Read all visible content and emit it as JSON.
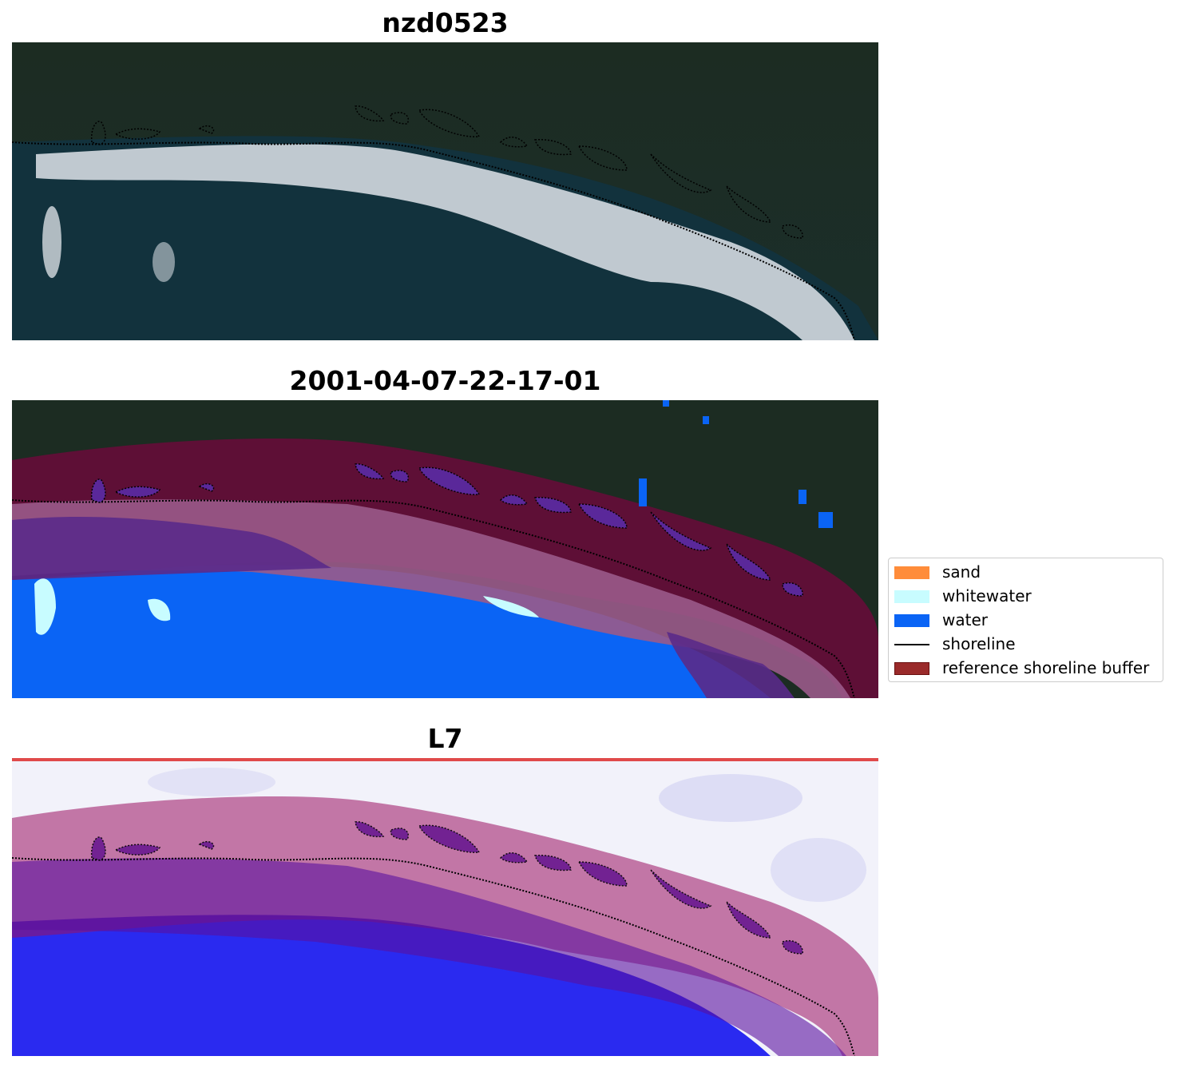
{
  "panels": [
    {
      "title": "nzd0523"
    },
    {
      "title": "2001-04-07-22-17-01"
    },
    {
      "title": "L7"
    }
  ],
  "legend": {
    "items": [
      {
        "label": "sand",
        "color": "#ff8c3a",
        "kind": "patch"
      },
      {
        "label": "whitewater",
        "color": "#c8fcff",
        "kind": "patch"
      },
      {
        "label": "water",
        "color": "#0a64f5",
        "kind": "patch"
      },
      {
        "label": "shoreline",
        "color": "#000000",
        "kind": "line"
      },
      {
        "label": "reference shoreline buffer",
        "color": "#9a2a2a",
        "kind": "patch"
      }
    ]
  },
  "colors": {
    "vegetation": "#1a2a22",
    "sea": "#11333f",
    "surf": "#e8ecf0",
    "water_class": "#0a64f5",
    "whitewater_class": "#c8fcff",
    "buffer": "#6a0a3a",
    "index_water": "#2a2af0",
    "index_land": "#f4f4fb"
  }
}
